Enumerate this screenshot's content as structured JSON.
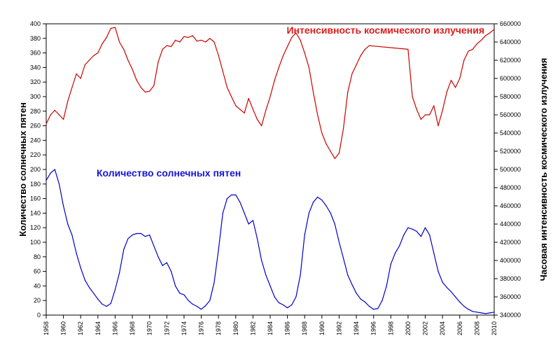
{
  "chart_data": {
    "type": "line",
    "xlim": [
      1958,
      2010
    ],
    "x_ticks": [
      1958,
      1960,
      1962,
      1964,
      1966,
      1968,
      1970,
      1972,
      1974,
      1976,
      1978,
      1980,
      1982,
      1984,
      1986,
      1988,
      1990,
      1992,
      1994,
      1996,
      1998,
      2000,
      2002,
      2004,
      2006,
      2008,
      2010
    ],
    "x_tick_labels": [
      "1958",
      "1960",
      "1962",
      "1964",
      "1966",
      "1968",
      "1970",
      "1972",
      "1974",
      "1976",
      "1978",
      "1980",
      "1982",
      "1984",
      "1986",
      "1988",
      "1990",
      "1992",
      "1994",
      "1996",
      "1998",
      "2000",
      "2002",
      "2004",
      "2006",
      "2008",
      "2010"
    ],
    "left_axis": {
      "label": "Количество солнечных пятен",
      "ylim": [
        0,
        400
      ],
      "ticks": [
        0,
        20,
        40,
        60,
        80,
        100,
        120,
        140,
        160,
        180,
        200,
        220,
        240,
        260,
        280,
        300,
        320,
        340,
        360,
        380,
        400
      ],
      "tick_labels": [
        "0",
        "20",
        "40",
        "60",
        "80",
        "100",
        "120",
        "140",
        "160",
        "180",
        "200",
        "220",
        "240",
        "260",
        "280",
        "300",
        "320",
        "340",
        "360",
        "380",
        "400"
      ]
    },
    "right_axis": {
      "label": "Часовая интенсивность космического излучения",
      "ylim": [
        340000,
        660000
      ],
      "ticks": [
        340000,
        360000,
        380000,
        400000,
        420000,
        440000,
        460000,
        480000,
        500000,
        520000,
        540000,
        560000,
        580000,
        600000,
        620000,
        640000,
        660000
      ],
      "tick_labels": [
        "340000",
        "360000",
        "380000",
        "400000",
        "420000",
        "440000",
        "460000",
        "480000",
        "500000",
        "520000",
        "540000",
        "560000",
        "580000",
        "600000",
        "620000",
        "640000",
        "660000"
      ]
    },
    "series": [
      {
        "name": "Количество солнечных пятен",
        "axis": "left",
        "color": "#0000cc",
        "label_color": "#1515d6",
        "x": [
          1958.0,
          1958.5,
          1959.0,
          1959.5,
          1960.0,
          1960.5,
          1961.0,
          1961.5,
          1962.0,
          1962.5,
          1963.0,
          1963.5,
          1964.0,
          1964.5,
          1965.0,
          1965.5,
          1966.0,
          1966.5,
          1967.0,
          1967.5,
          1968.0,
          1968.5,
          1969.0,
          1969.5,
          1970.0,
          1970.5,
          1971.0,
          1971.5,
          1972.0,
          1972.5,
          1973.0,
          1973.5,
          1974.0,
          1974.5,
          1975.0,
          1975.5,
          1976.0,
          1976.5,
          1977.0,
          1977.5,
          1978.0,
          1978.5,
          1979.0,
          1979.5,
          1980.0,
          1980.5,
          1981.0,
          1981.5,
          1982.0,
          1982.5,
          1983.0,
          1983.5,
          1984.0,
          1984.5,
          1985.0,
          1985.5,
          1986.0,
          1986.5,
          1987.0,
          1987.5,
          1988.0,
          1988.5,
          1989.0,
          1989.5,
          1990.0,
          1990.5,
          1991.0,
          1991.5,
          1992.0,
          1992.5,
          1993.0,
          1993.5,
          1994.0,
          1994.5,
          1995.0,
          1995.5,
          1996.0,
          1996.5,
          1997.0,
          1997.5,
          1998.0,
          1998.5,
          1999.0,
          1999.5,
          2000.0,
          2000.5,
          2001.0,
          2001.5,
          2002.0,
          2002.5,
          2003.0,
          2003.5,
          2004.0,
          2004.5,
          2005.0,
          2005.5,
          2006.0,
          2006.5,
          2007.0,
          2007.5,
          2008.0,
          2008.5,
          2009.0,
          2009.5,
          2010.0
        ],
        "values": [
          185,
          195,
          200,
          180,
          150,
          125,
          110,
          85,
          65,
          48,
          38,
          30,
          22,
          15,
          12,
          16,
          35,
          58,
          90,
          105,
          110,
          112,
          112,
          108,
          110,
          95,
          80,
          68,
          72,
          60,
          40,
          30,
          28,
          20,
          15,
          12,
          8,
          13,
          20,
          45,
          90,
          140,
          160,
          165,
          165,
          155,
          140,
          125,
          130,
          105,
          75,
          55,
          40,
          25,
          17,
          14,
          10,
          14,
          25,
          55,
          110,
          140,
          155,
          162,
          158,
          150,
          140,
          125,
          100,
          78,
          55,
          42,
          30,
          22,
          18,
          12,
          8,
          9,
          20,
          40,
          70,
          85,
          95,
          110,
          120,
          118,
          115,
          108,
          120,
          110,
          85,
          60,
          45,
          38,
          32,
          25,
          18,
          12,
          8,
          5,
          4,
          3,
          2,
          3,
          4
        ]
      },
      {
        "name": "Интенсивность космического излучения",
        "axis": "right",
        "color": "#cc0000",
        "label_color": "#dd1d1d",
        "x": [
          1958.0,
          1958.5,
          1959.0,
          1959.5,
          1960.0,
          1960.5,
          1961.0,
          1961.5,
          1962.0,
          1962.5,
          1963.0,
          1963.5,
          1964.0,
          1964.5,
          1965.0,
          1965.5,
          1966.0,
          1966.5,
          1967.0,
          1967.5,
          1968.0,
          1968.5,
          1969.0,
          1969.5,
          1970.0,
          1970.5,
          1971.0,
          1971.5,
          1972.0,
          1972.5,
          1973.0,
          1973.5,
          1974.0,
          1974.5,
          1975.0,
          1975.5,
          1976.0,
          1976.5,
          1977.0,
          1977.5,
          1978.0,
          1978.5,
          1979.0,
          1979.5,
          1980.0,
          1980.5,
          1981.0,
          1981.5,
          1982.0,
          1982.5,
          1983.0,
          1983.5,
          1984.0,
          1984.5,
          1985.0,
          1985.5,
          1986.0,
          1986.5,
          1987.0,
          1987.5,
          1988.0,
          1988.5,
          1989.0,
          1989.5,
          1990.0,
          1990.5,
          1991.0,
          1991.5,
          1992.0,
          1992.5,
          1993.0,
          1993.5,
          1994.0,
          1994.5,
          1995.0,
          1995.5,
          2000.0,
          2000.5,
          2001.0,
          2001.5,
          2002.0,
          2002.5,
          2003.0,
          2003.5,
          2004.0,
          2004.5,
          2005.0,
          2005.5,
          2006.0,
          2006.5,
          2007.0,
          2007.5,
          2008.0,
          2008.5,
          2009.0,
          2009.5,
          2010.0
        ],
        "values": [
          550000,
          560000,
          565000,
          560000,
          555000,
          575000,
          590000,
          605000,
          600000,
          615000,
          620000,
          625000,
          628000,
          638000,
          645000,
          655000,
          656000,
          640000,
          632000,
          620000,
          610000,
          598000,
          590000,
          585000,
          586000,
          592000,
          618000,
          632000,
          636000,
          635000,
          642000,
          640000,
          646000,
          645000,
          647000,
          641000,
          642000,
          640000,
          644000,
          640000,
          625000,
          608000,
          590000,
          580000,
          570000,
          566000,
          562000,
          578000,
          566000,
          555000,
          548000,
          565000,
          580000,
          598000,
          612000,
          625000,
          635000,
          645000,
          650000,
          642000,
          628000,
          612000,
          585000,
          560000,
          540000,
          528000,
          520000,
          512000,
          518000,
          545000,
          585000,
          605000,
          615000,
          625000,
          632000,
          636000,
          632000,
          580000,
          566000,
          555000,
          560000,
          560000,
          570000,
          548000,
          565000,
          585000,
          598000,
          590000,
          600000,
          620000,
          630000,
          632000,
          638000,
          642000,
          647000,
          650000,
          654000
        ]
      }
    ],
    "grid": false,
    "legend": "inline labels"
  }
}
